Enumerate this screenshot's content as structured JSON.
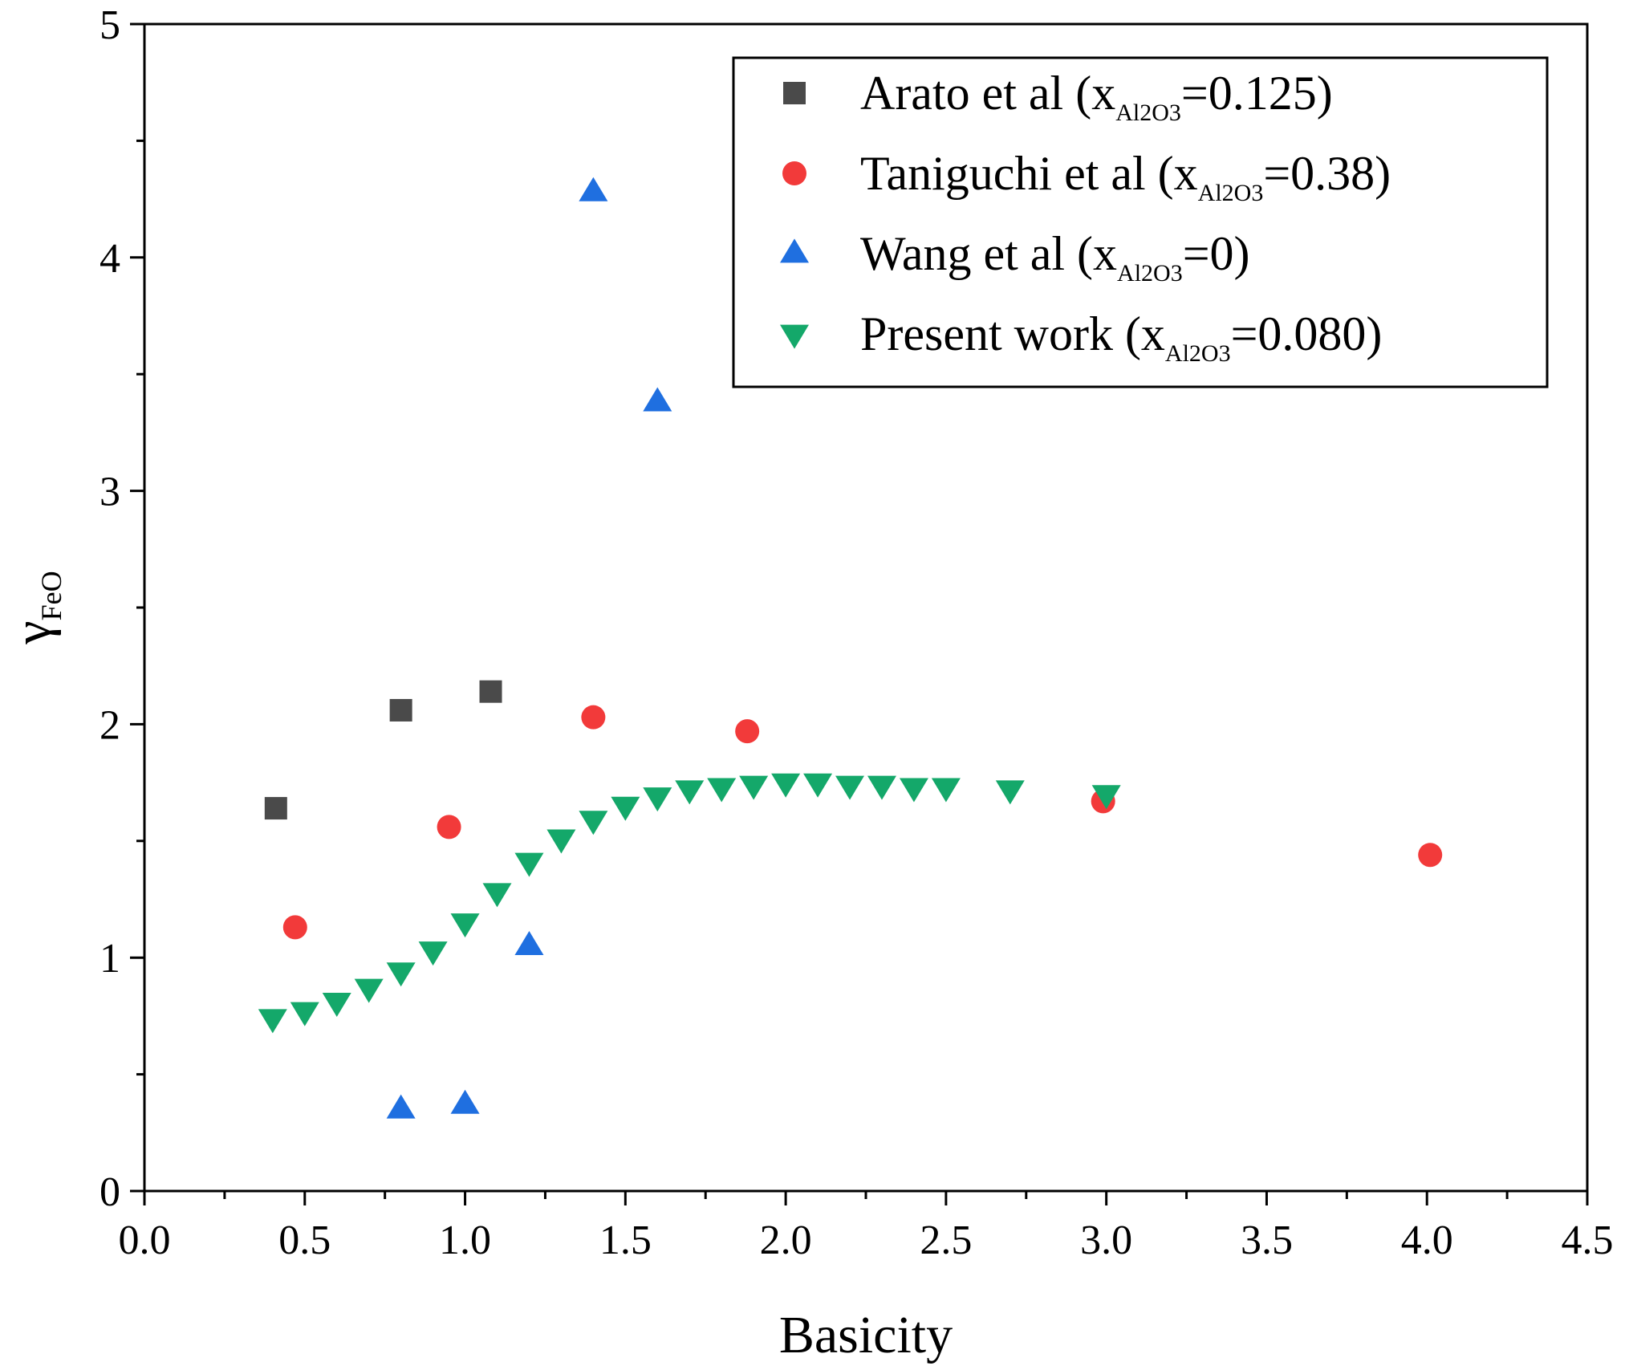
{
  "chart_data": {
    "type": "scatter",
    "title": "",
    "xlabel": "Basicity",
    "ylabel": {
      "main": "γ",
      "sub": "FeO"
    },
    "xlim": [
      0.0,
      4.5
    ],
    "ylim": [
      0,
      5
    ],
    "xticks": [
      0.0,
      0.5,
      1.0,
      1.5,
      2.0,
      2.5,
      3.0,
      3.5,
      4.0,
      4.5
    ],
    "xtick_labels": [
      "0.0",
      "0.5",
      "1.0",
      "1.5",
      "2.0",
      "2.5",
      "3.0",
      "3.5",
      "4.0",
      "4.5"
    ],
    "yticks": [
      0,
      1,
      2,
      3,
      4,
      5
    ],
    "ytick_labels": [
      "0",
      "1",
      "2",
      "3",
      "4",
      "5"
    ],
    "grid": false,
    "legend_position": "top-right",
    "series": [
      {
        "name": "Arato et al (xAl2O3=0.125)",
        "label_prefix": "Arato et al (x",
        "label_sub": "Al2O3",
        "label_suffix": "=0.125)",
        "marker": "square",
        "color": "#4a4a4a",
        "x": [
          0.41,
          0.8,
          1.08
        ],
        "y": [
          1.64,
          2.06,
          2.14
        ]
      },
      {
        "name": "Taniguchi et al (xAl2O3=0.38)",
        "label_prefix": "Taniguchi et al (x",
        "label_sub": "Al2O3",
        "label_suffix": "=0.38)",
        "marker": "circle",
        "color": "#f23a3a",
        "x": [
          0.47,
          0.95,
          1.4,
          1.88,
          2.99,
          4.01
        ],
        "y": [
          1.13,
          1.56,
          2.03,
          1.97,
          1.67,
          1.44
        ]
      },
      {
        "name": "Wang et al (xAl2O3=0)",
        "label_prefix": "Wang et al (x",
        "label_sub": "Al2O3",
        "label_suffix": "=0)",
        "marker": "triangle-up",
        "color": "#1f6fe0",
        "x": [
          0.8,
          1.0,
          1.2,
          1.4,
          1.6
        ],
        "y": [
          0.35,
          0.37,
          1.05,
          4.28,
          3.38
        ]
      },
      {
        "name": "Present work (xAl2O3=0.080)",
        "label_prefix": "Present work (x",
        "label_sub": "Al2O3",
        "label_suffix": "=0.080)",
        "marker": "triangle-down",
        "color": "#14a86a",
        "x": [
          0.4,
          0.5,
          0.6,
          0.7,
          0.8,
          0.9,
          1.0,
          1.1,
          1.2,
          1.3,
          1.4,
          1.5,
          1.6,
          1.7,
          1.8,
          1.9,
          2.0,
          2.1,
          2.2,
          2.3,
          2.4,
          2.5,
          2.7,
          3.0
        ],
        "y": [
          0.74,
          0.77,
          0.81,
          0.87,
          0.94,
          1.03,
          1.15,
          1.28,
          1.41,
          1.51,
          1.59,
          1.65,
          1.69,
          1.72,
          1.73,
          1.74,
          1.75,
          1.75,
          1.74,
          1.74,
          1.73,
          1.73,
          1.72,
          1.7
        ]
      }
    ]
  }
}
